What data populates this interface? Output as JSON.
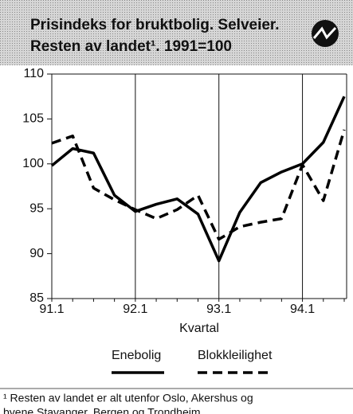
{
  "chart_data": {
    "type": "line",
    "title": [
      "Prisindeks for bruktbolig. Selveier.",
      "Resten av landet¹. 1991=100"
    ],
    "x_label": "Kvartal",
    "categories": [
      "91.1",
      null,
      null,
      null,
      "92.1",
      null,
      null,
      null,
      "93.1",
      null,
      null,
      null,
      "94.1",
      null,
      null
    ],
    "series": [
      {
        "name": "Enebolig",
        "color": "#000000",
        "dashed": false,
        "values": [
          99.8,
          101.7,
          101.2,
          96.5,
          94.7,
          95.5,
          96.1,
          94.4,
          89.2,
          94.6,
          97.9,
          99.1,
          100.0,
          102.4,
          107.5
        ]
      },
      {
        "name": "Blokkleilighet",
        "color": "#000000",
        "dashed": true,
        "values": [
          102.3,
          103.1,
          97.3,
          96.0,
          94.9,
          93.9,
          94.9,
          96.5,
          91.6,
          93.0,
          93.5,
          93.9,
          99.9,
          95.9,
          103.8
        ]
      }
    ],
    "ylim": [
      85,
      110
    ],
    "yticks": [
      85,
      90,
      95,
      100,
      105,
      110
    ],
    "footnote": [
      "¹ Resten av landet er alt utenfor Oslo, Akershus og",
      "byene Stavanger, Bergen og Trondheim."
    ]
  }
}
